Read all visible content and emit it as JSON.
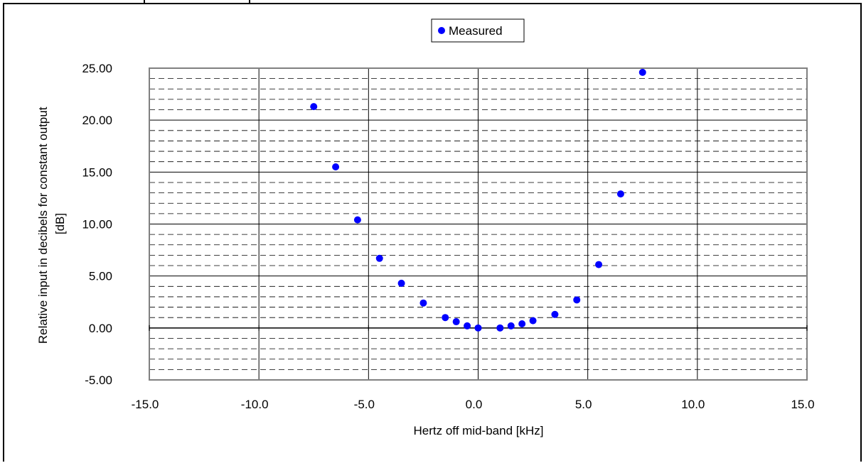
{
  "chart_data": {
    "type": "scatter",
    "title": "",
    "xlabel": "Hertz off mid-band [kHz]",
    "ylabel_lines": [
      "Relative input in decibels for constant output",
      "[dB]"
    ],
    "xlim": [
      -15.0,
      15.0
    ],
    "ylim": [
      -5.0,
      25.0
    ],
    "x_ticks": [
      "-15.0",
      "-10.0",
      "-5.0",
      "0.0",
      "5.0",
      "10.0",
      "15.0"
    ],
    "y_ticks": [
      "-5.00",
      "0.00",
      "5.00",
      "10.00",
      "15.00",
      "20.00",
      "25.00"
    ],
    "grid": "major solid, minor dashed",
    "legend_position": "top-center",
    "series": [
      {
        "name": "Measured",
        "color": "#0000ff",
        "x": [
          -7.5,
          -6.5,
          -5.5,
          -4.5,
          -3.5,
          -2.5,
          -1.5,
          -1.0,
          -0.5,
          0.0,
          1.0,
          1.5,
          2.0,
          2.5,
          3.5,
          4.5,
          5.5,
          6.5,
          7.5
        ],
        "y": [
          21.3,
          15.5,
          10.4,
          6.7,
          4.3,
          2.4,
          1.0,
          0.6,
          0.2,
          0.0,
          0.0,
          0.2,
          0.4,
          0.7,
          1.3,
          2.7,
          6.1,
          12.9,
          24.6
        ]
      }
    ]
  }
}
